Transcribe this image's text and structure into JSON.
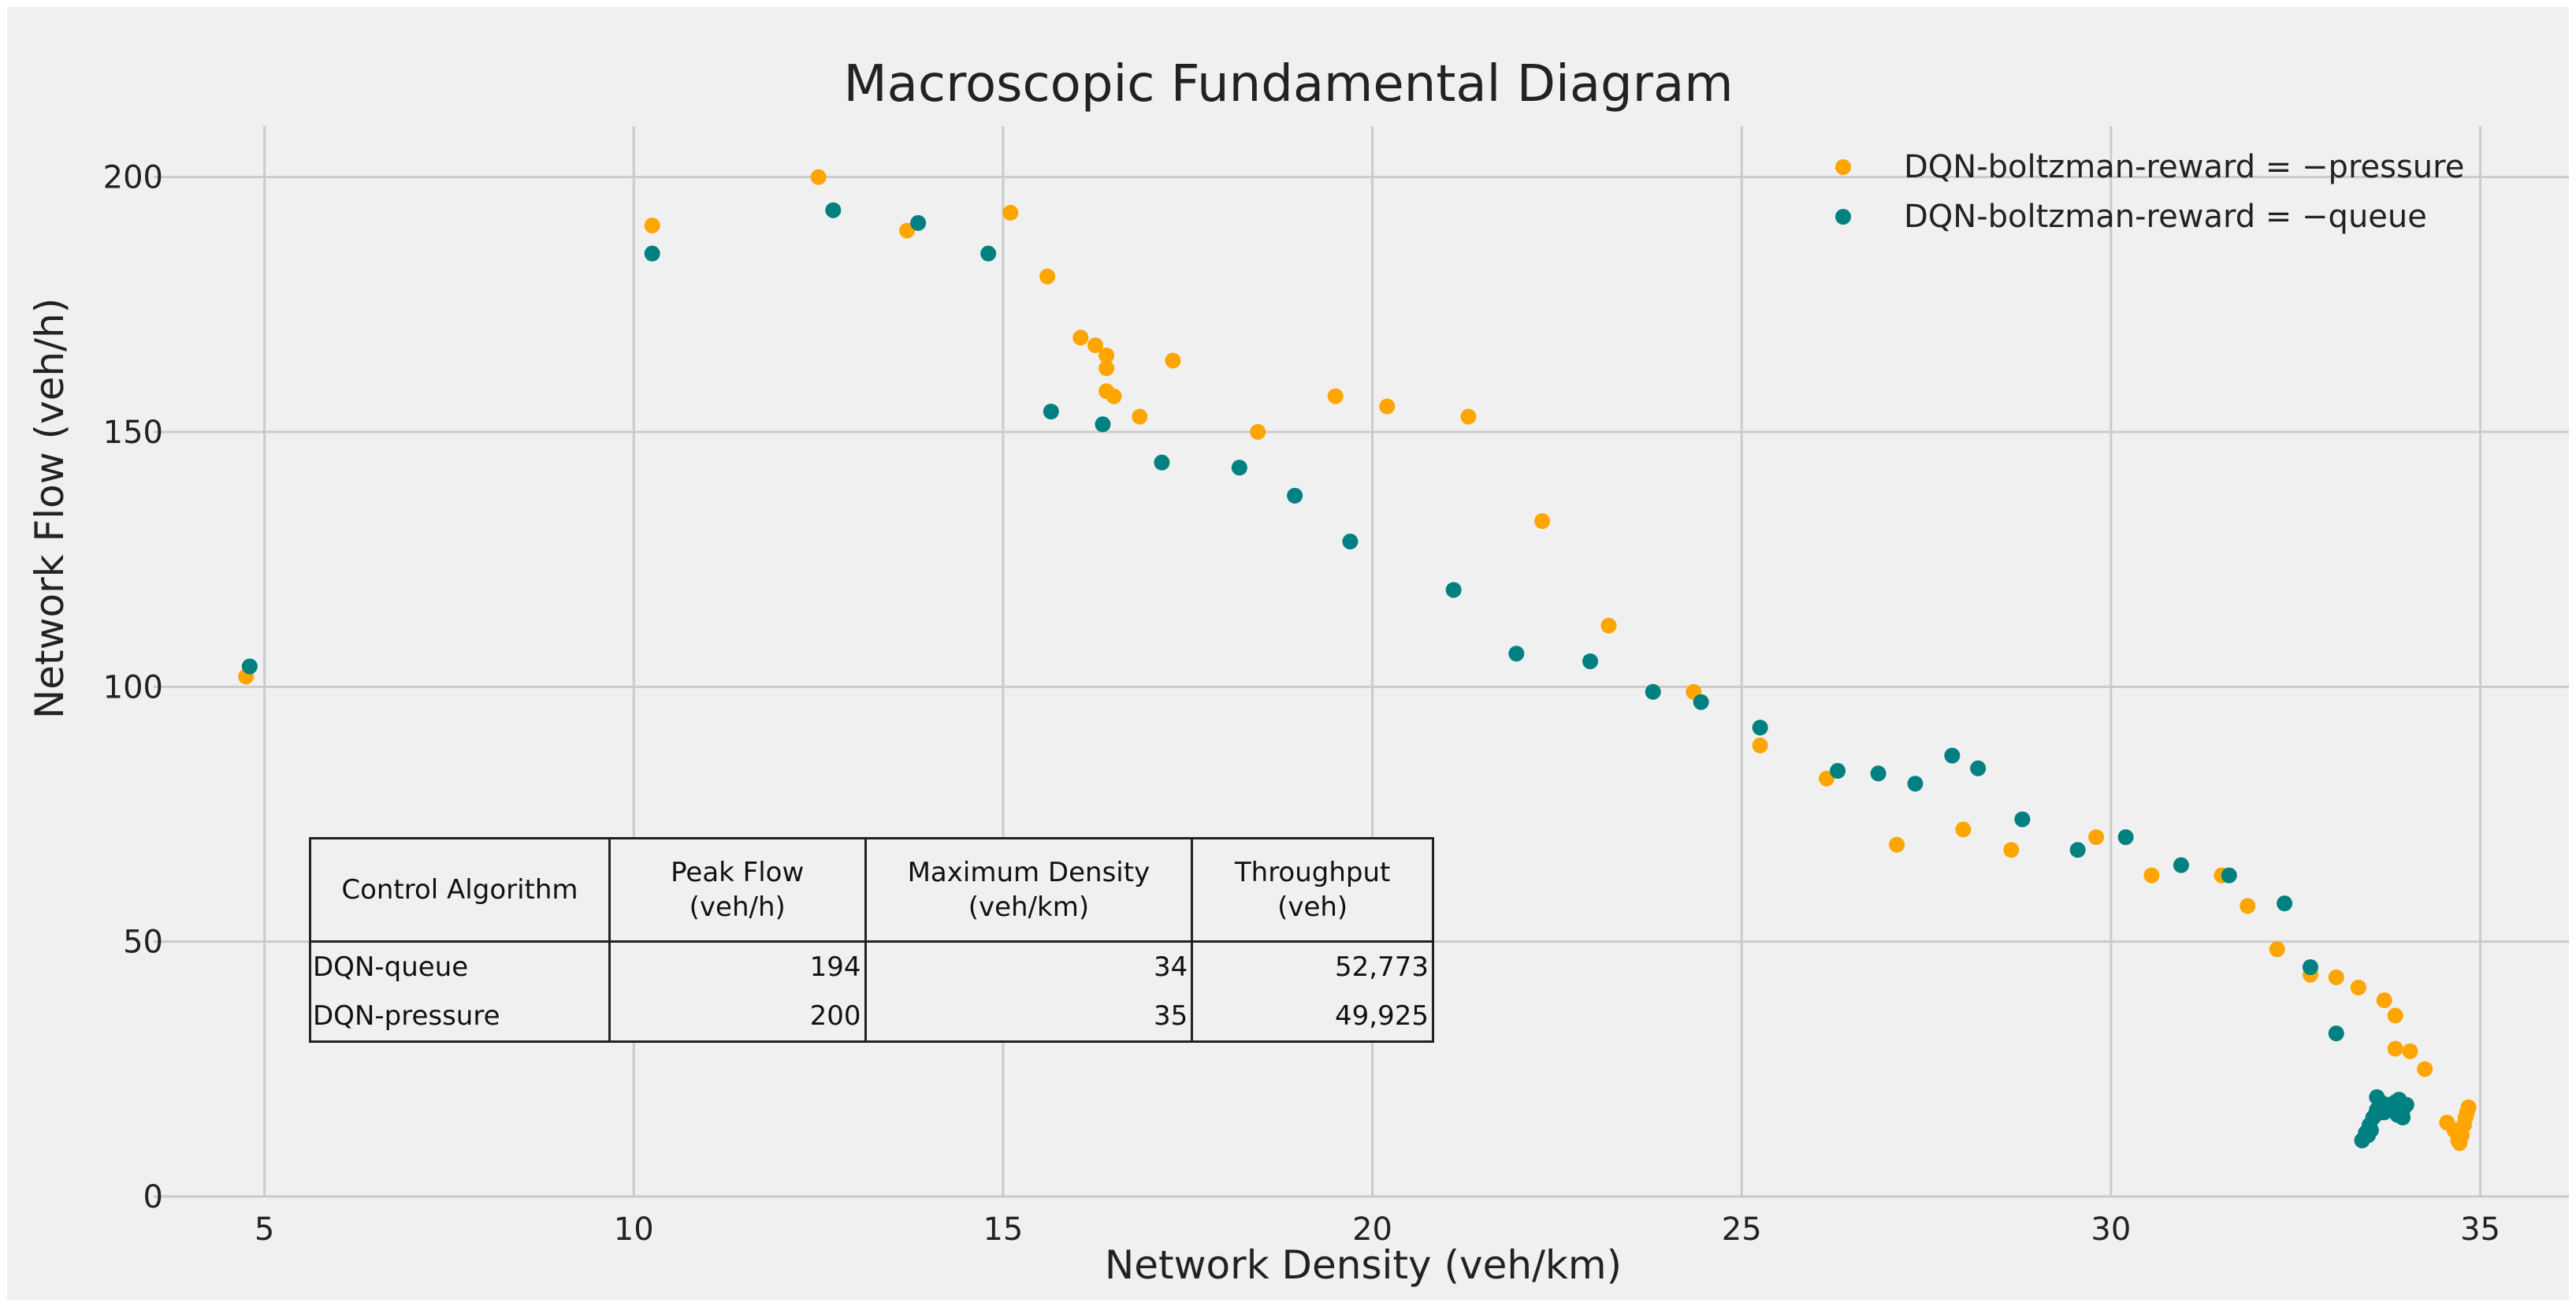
{
  "chart_data": {
    "type": "scatter",
    "title": "Macroscopic Fundamental Diagram",
    "xlabel": "Network Density (veh/km)",
    "ylabel": "Network Flow (veh/h)",
    "xlim": [
      3.5,
      36.2
    ],
    "ylim": [
      0,
      210
    ],
    "xticks": [
      5,
      10,
      15,
      20,
      25,
      30,
      35
    ],
    "yticks": [
      0,
      50,
      100,
      150,
      200
    ],
    "grid": true,
    "legend_position": "top-right",
    "series": [
      {
        "name": "DQN-boltzman-reward = −pressure",
        "color": "#FFA500",
        "points": [
          [
            4.75,
            102
          ],
          [
            10.25,
            190.5
          ],
          [
            12.5,
            200
          ],
          [
            13.7,
            189.5
          ],
          [
            15.1,
            193
          ],
          [
            15.6,
            180.5
          ],
          [
            16.05,
            168.5
          ],
          [
            16.25,
            167
          ],
          [
            16.4,
            165
          ],
          [
            16.4,
            162.5
          ],
          [
            16.4,
            158
          ],
          [
            16.5,
            157
          ],
          [
            16.85,
            153
          ],
          [
            17.3,
            164
          ],
          [
            18.45,
            150
          ],
          [
            19.5,
            157
          ],
          [
            20.2,
            155
          ],
          [
            21.3,
            153
          ],
          [
            22.3,
            132.5
          ],
          [
            23.2,
            112
          ],
          [
            24.35,
            99
          ],
          [
            25.25,
            88.5
          ],
          [
            26.15,
            82
          ],
          [
            27.1,
            69
          ],
          [
            28.0,
            72
          ],
          [
            28.65,
            68
          ],
          [
            29.8,
            70.5
          ],
          [
            30.55,
            63
          ],
          [
            31.5,
            63
          ],
          [
            31.85,
            57
          ],
          [
            32.25,
            48.5
          ],
          [
            32.7,
            43.5
          ],
          [
            33.05,
            43
          ],
          [
            33.35,
            41
          ],
          [
            33.7,
            38.5
          ],
          [
            33.85,
            35.5
          ],
          [
            33.85,
            29
          ],
          [
            34.05,
            28.5
          ],
          [
            34.25,
            25
          ],
          [
            34.55,
            14.5
          ],
          [
            34.65,
            13
          ],
          [
            34.7,
            11
          ],
          [
            34.75,
            12
          ],
          [
            34.78,
            14
          ],
          [
            34.8,
            15.5
          ],
          [
            34.82,
            16.5
          ],
          [
            34.84,
            17.5
          ],
          [
            34.68,
            12.5
          ],
          [
            34.72,
            10.5
          ]
        ]
      },
      {
        "name": "DQN-boltzman-reward = −queue",
        "color": "#008080",
        "points": [
          [
            4.8,
            104
          ],
          [
            10.25,
            185
          ],
          [
            12.7,
            193.5
          ],
          [
            13.85,
            191
          ],
          [
            14.8,
            185
          ],
          [
            15.65,
            154
          ],
          [
            16.35,
            151.5
          ],
          [
            17.15,
            144
          ],
          [
            18.2,
            143
          ],
          [
            18.95,
            137.5
          ],
          [
            19.7,
            128.5
          ],
          [
            21.1,
            119
          ],
          [
            21.95,
            106.5
          ],
          [
            22.95,
            105
          ],
          [
            23.8,
            99
          ],
          [
            24.45,
            97
          ],
          [
            25.25,
            92
          ],
          [
            26.3,
            83.5
          ],
          [
            26.85,
            83
          ],
          [
            27.35,
            81
          ],
          [
            27.85,
            86.5
          ],
          [
            28.2,
            84
          ],
          [
            28.8,
            74
          ],
          [
            29.55,
            68
          ],
          [
            30.2,
            70.5
          ],
          [
            30.95,
            65
          ],
          [
            31.6,
            63
          ],
          [
            32.35,
            57.5
          ],
          [
            32.7,
            45
          ],
          [
            33.05,
            32
          ],
          [
            33.4,
            11
          ],
          [
            33.45,
            12.5
          ],
          [
            33.5,
            14
          ],
          [
            33.55,
            15.5
          ],
          [
            33.6,
            17
          ],
          [
            33.6,
            19.5
          ],
          [
            33.7,
            16.5
          ],
          [
            33.75,
            18
          ],
          [
            33.8,
            17.5
          ],
          [
            33.85,
            18.5
          ],
          [
            33.9,
            19
          ],
          [
            33.95,
            17
          ],
          [
            33.95,
            15.5
          ],
          [
            34.0,
            18
          ],
          [
            33.65,
            18.5
          ],
          [
            33.48,
            12
          ],
          [
            33.52,
            13
          ],
          [
            33.58,
            16
          ],
          [
            33.88,
            16
          ]
        ]
      }
    ]
  },
  "table": {
    "headers": [
      [
        "Control Algorithm"
      ],
      [
        "Peak Flow",
        "(veh/h)"
      ],
      [
        "Maximum Density",
        "(veh/km)"
      ],
      [
        "Throughput",
        "(veh)"
      ]
    ],
    "rows": [
      [
        "DQN-queue",
        "194",
        "34",
        "52,773"
      ],
      [
        "DQN-pressure",
        "200",
        "35",
        "49,925"
      ]
    ]
  },
  "colors": {
    "background": "#f0f0f0",
    "grid": "#cbcbcb",
    "axis_text": "#222222"
  }
}
